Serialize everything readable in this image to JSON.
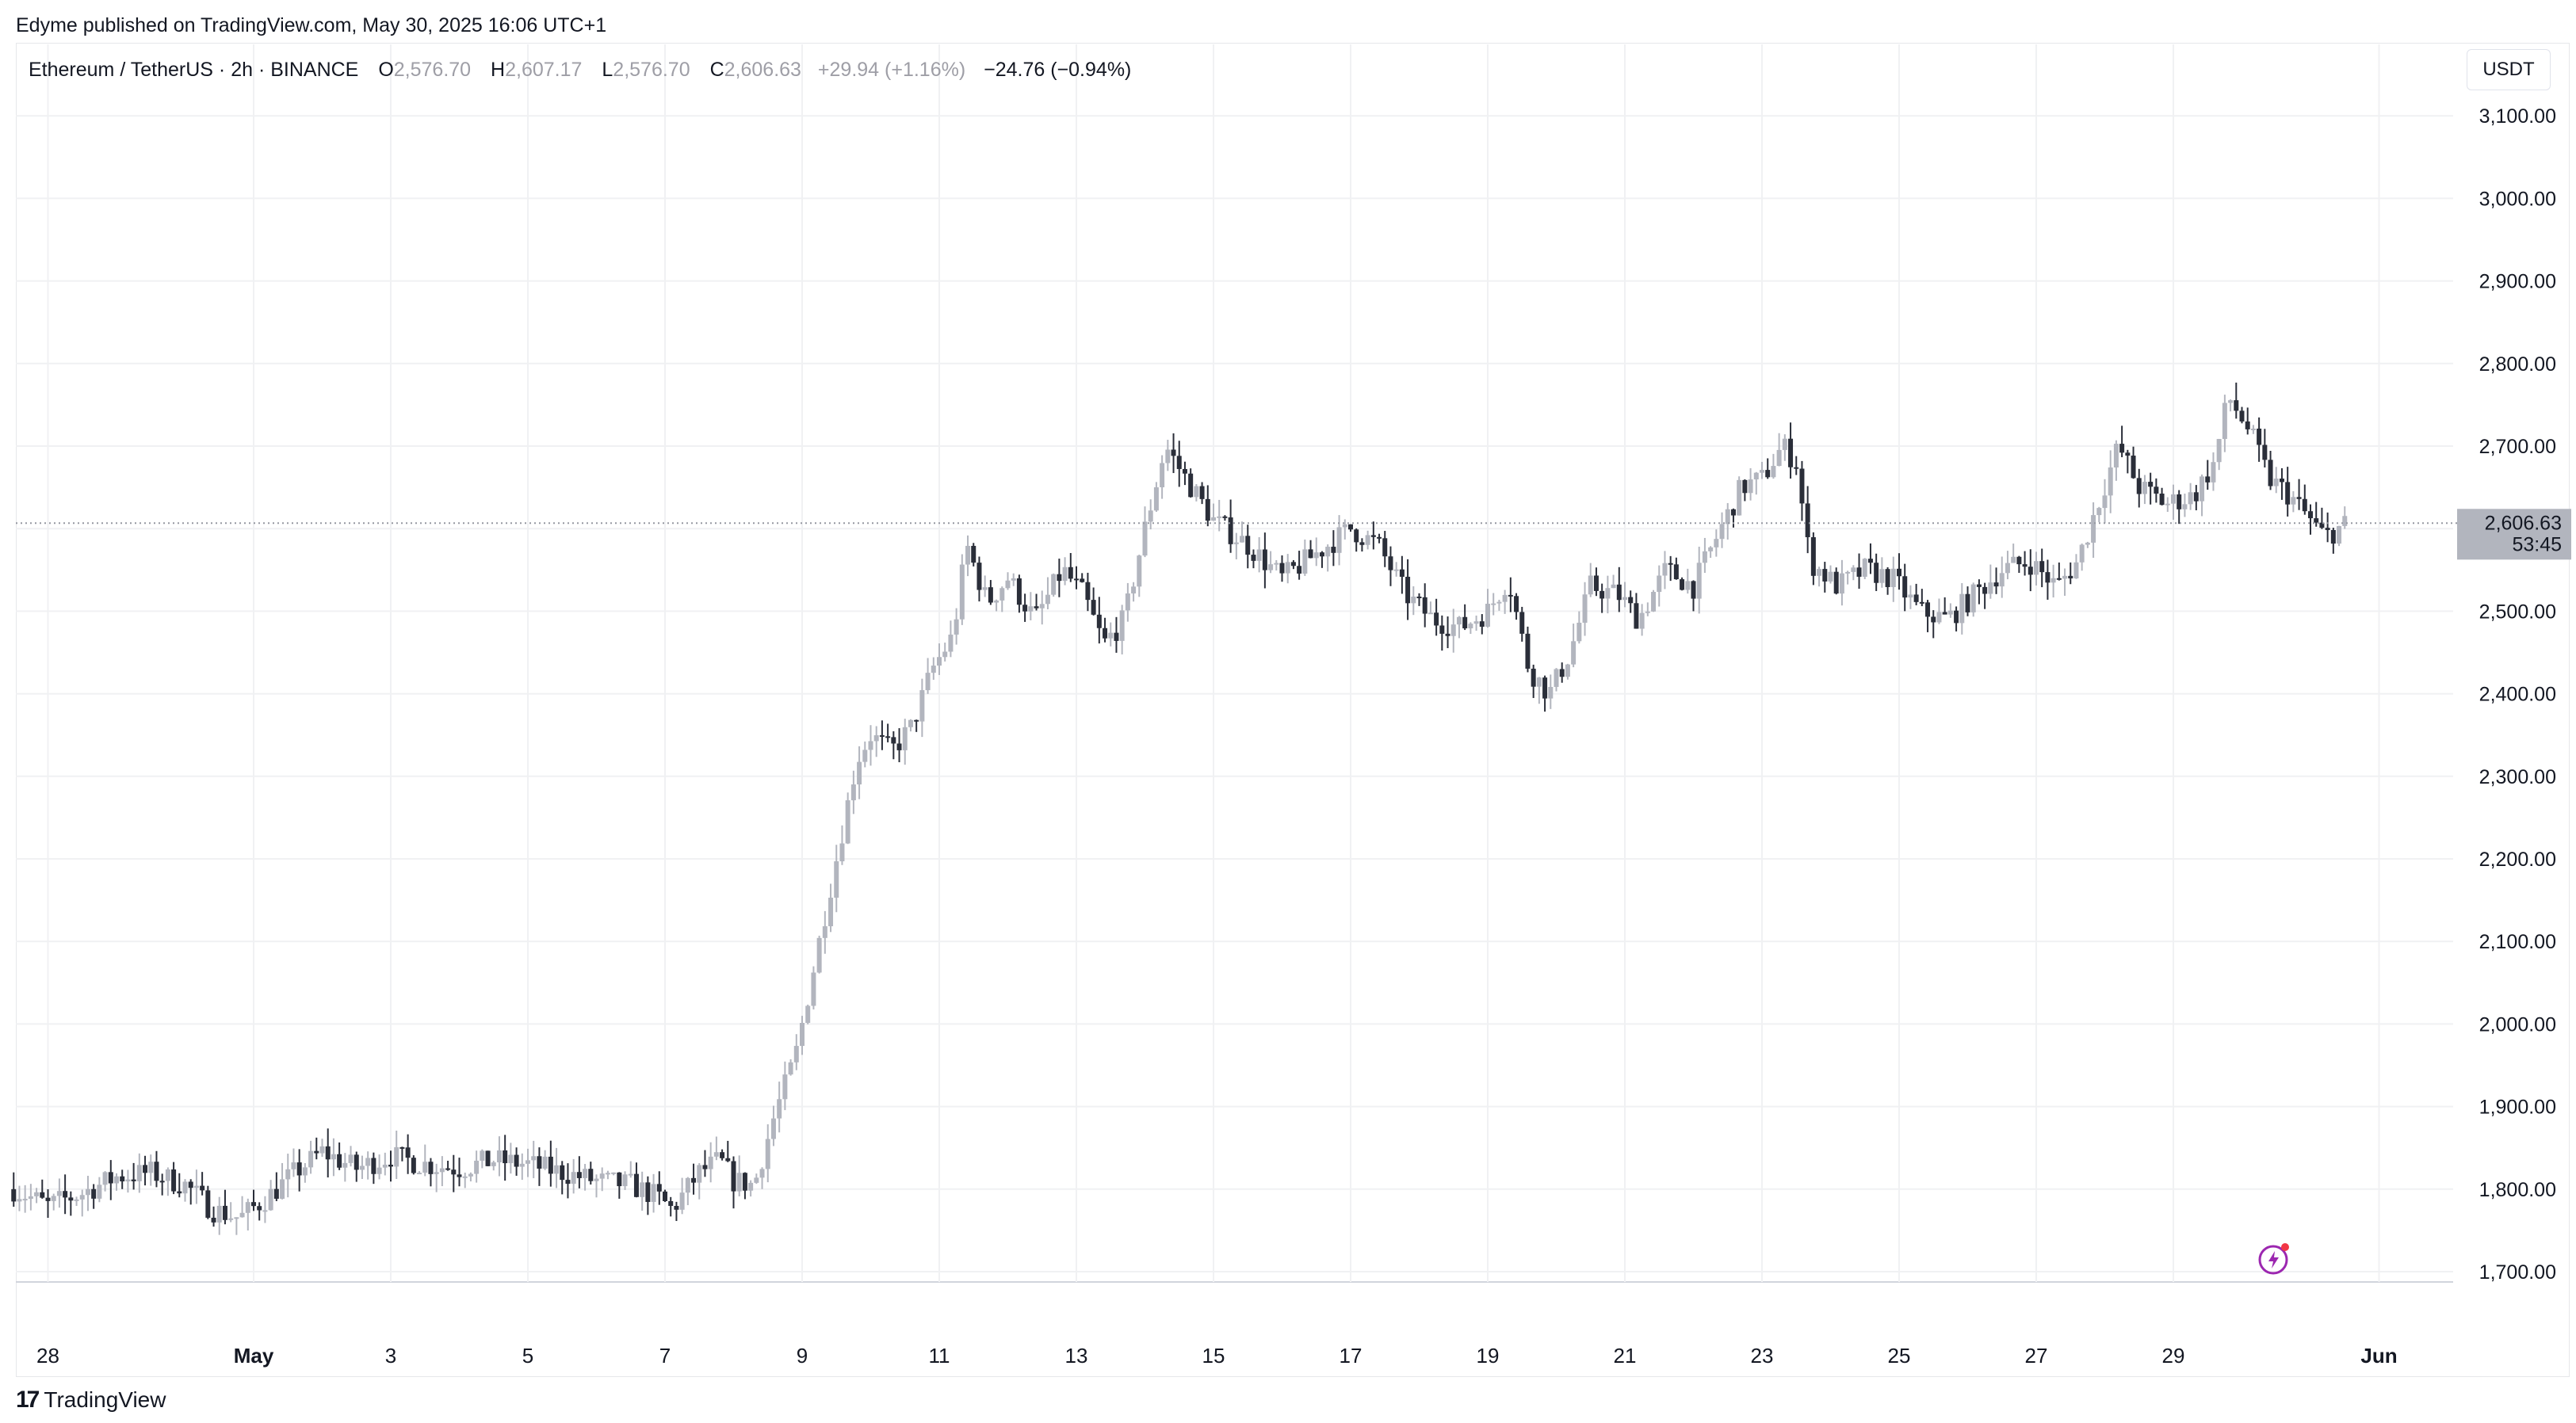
{
  "header": {
    "published": "Edyme published on TradingView.com, May 30, 2025 16:06 UTC+1"
  },
  "legend": {
    "symbol": "Ethereum / TetherUS · 2h · BINANCE",
    "o_label": "O",
    "o_value": "2,576.70",
    "h_label": "H",
    "h_value": "2,607.17",
    "l_label": "L",
    "l_value": "2,576.70",
    "c_label": "C",
    "c_value": "2,606.63",
    "change_bar": "+29.94 (+1.16%)",
    "change_session": "−24.76 (−0.94%)"
  },
  "currency_button": "USDT",
  "price_tag": {
    "price": "2,606.63",
    "countdown": "53:45"
  },
  "brand": {
    "logo_mark": "17",
    "logo_text": "TradingView"
  },
  "colors": {
    "up": "#b2b5be",
    "down": "#2a2e39",
    "grid": "#f0f1f3",
    "tag": "#b2b5be"
  },
  "chart_data": {
    "type": "candlestick",
    "symbol": "ETHUSDT",
    "interval": "2h",
    "ylim": [
      1690,
      3150
    ],
    "y_ticks": [
      "3,100.00",
      "3,000.00",
      "2,900.00",
      "2,800.00",
      "2,700.00",
      "2,600.00",
      "2,500.00",
      "2,400.00",
      "2,300.00",
      "2,200.00",
      "2,100.00",
      "2,000.00",
      "1,900.00",
      "1,800.00",
      "1,700.00"
    ],
    "y_tick_values": [
      3100,
      3000,
      2900,
      2800,
      2700,
      2600,
      2500,
      2400,
      2300,
      2200,
      2100,
      2000,
      1900,
      1800,
      1700
    ],
    "x_ticks": [
      "28",
      "May",
      "3",
      "5",
      "7",
      "9",
      "11",
      "13",
      "15",
      "17",
      "19",
      "21",
      "23",
      "25",
      "27",
      "29",
      "Jun"
    ],
    "x_tick_days": [
      -3,
      0,
      2,
      4,
      6,
      8,
      10,
      12,
      14,
      16,
      18,
      20,
      22,
      24,
      26,
      28,
      31
    ],
    "last_price": 2606.63,
    "anchors": [
      {
        "day": -3.5,
        "price": 1800
      },
      {
        "day": -3.0,
        "price": 1780
      },
      {
        "day": -2.5,
        "price": 1795
      },
      {
        "day": -2.0,
        "price": 1815
      },
      {
        "day": -1.5,
        "price": 1820
      },
      {
        "day": -1.0,
        "price": 1805
      },
      {
        "day": -0.6,
        "price": 1775
      },
      {
        "day": -0.2,
        "price": 1765
      },
      {
        "day": 0.2,
        "price": 1790
      },
      {
        "day": 0.6,
        "price": 1820
      },
      {
        "day": 1.0,
        "price": 1845
      },
      {
        "day": 1.5,
        "price": 1825
      },
      {
        "day": 2.0,
        "price": 1840
      },
      {
        "day": 2.5,
        "price": 1830
      },
      {
        "day": 3.0,
        "price": 1825
      },
      {
        "day": 3.5,
        "price": 1835
      },
      {
        "day": 4.0,
        "price": 1830
      },
      {
        "day": 4.5,
        "price": 1820
      },
      {
        "day": 5.0,
        "price": 1810
      },
      {
        "day": 5.5,
        "price": 1805
      },
      {
        "day": 5.9,
        "price": 1790
      },
      {
        "day": 6.1,
        "price": 1775
      },
      {
        "day": 6.5,
        "price": 1820
      },
      {
        "day": 6.8,
        "price": 1835
      },
      {
        "day": 7.0,
        "price": 1810
      },
      {
        "day": 7.3,
        "price": 1805
      },
      {
        "day": 7.6,
        "price": 1890
      },
      {
        "day": 7.9,
        "price": 1960
      },
      {
        "day": 8.2,
        "price": 2080
      },
      {
        "day": 8.5,
        "price": 2200
      },
      {
        "day": 8.8,
        "price": 2320
      },
      {
        "day": 9.0,
        "price": 2350
      },
      {
        "day": 9.3,
        "price": 2330
      },
      {
        "day": 9.6,
        "price": 2360
      },
      {
        "day": 9.9,
        "price": 2430
      },
      {
        "day": 10.2,
        "price": 2470
      },
      {
        "day": 10.4,
        "price": 2580
      },
      {
        "day": 10.7,
        "price": 2510
      },
      {
        "day": 11.0,
        "price": 2540
      },
      {
        "day": 11.4,
        "price": 2490
      },
      {
        "day": 11.8,
        "price": 2550
      },
      {
        "day": 12.1,
        "price": 2520
      },
      {
        "day": 12.4,
        "price": 2460
      },
      {
        "day": 12.7,
        "price": 2490
      },
      {
        "day": 13.0,
        "price": 2600
      },
      {
        "day": 13.3,
        "price": 2700
      },
      {
        "day": 13.6,
        "price": 2660
      },
      {
        "day": 14.0,
        "price": 2610
      },
      {
        "day": 14.5,
        "price": 2580
      },
      {
        "day": 15.0,
        "price": 2540
      },
      {
        "day": 15.5,
        "price": 2570
      },
      {
        "day": 16.0,
        "price": 2600
      },
      {
        "day": 16.4,
        "price": 2580
      },
      {
        "day": 16.8,
        "price": 2520
      },
      {
        "day": 17.2,
        "price": 2490
      },
      {
        "day": 17.6,
        "price": 2480
      },
      {
        "day": 18.0,
        "price": 2500
      },
      {
        "day": 18.3,
        "price": 2540
      },
      {
        "day": 18.6,
        "price": 2430
      },
      {
        "day": 18.9,
        "price": 2400
      },
      {
        "day": 19.2,
        "price": 2450
      },
      {
        "day": 19.5,
        "price": 2530
      },
      {
        "day": 19.9,
        "price": 2520
      },
      {
        "day": 20.2,
        "price": 2490
      },
      {
        "day": 20.6,
        "price": 2550
      },
      {
        "day": 21.0,
        "price": 2530
      },
      {
        "day": 21.4,
        "price": 2600
      },
      {
        "day": 21.7,
        "price": 2650
      },
      {
        "day": 22.0,
        "price": 2660
      },
      {
        "day": 22.3,
        "price": 2700
      },
      {
        "day": 22.5,
        "price": 2680
      },
      {
        "day": 22.7,
        "price": 2560
      },
      {
        "day": 23.1,
        "price": 2530
      },
      {
        "day": 23.5,
        "price": 2550
      },
      {
        "day": 23.9,
        "price": 2540
      },
      {
        "day": 24.3,
        "price": 2500
      },
      {
        "day": 24.7,
        "price": 2490
      },
      {
        "day": 25.1,
        "price": 2520
      },
      {
        "day": 25.5,
        "price": 2550
      },
      {
        "day": 25.9,
        "price": 2560
      },
      {
        "day": 26.3,
        "price": 2530
      },
      {
        "day": 26.6,
        "price": 2560
      },
      {
        "day": 26.9,
        "price": 2630
      },
      {
        "day": 27.2,
        "price": 2700
      },
      {
        "day": 27.5,
        "price": 2650
      },
      {
        "day": 27.9,
        "price": 2630
      },
      {
        "day": 28.3,
        "price": 2640
      },
      {
        "day": 28.6,
        "price": 2680
      },
      {
        "day": 28.8,
        "price": 2760
      },
      {
        "day": 29.1,
        "price": 2720
      },
      {
        "day": 29.4,
        "price": 2660
      },
      {
        "day": 29.7,
        "price": 2640
      },
      {
        "day": 30.0,
        "price": 2610
      },
      {
        "day": 30.2,
        "price": 2590
      },
      {
        "day": 30.55,
        "price": 2606.63
      }
    ]
  }
}
